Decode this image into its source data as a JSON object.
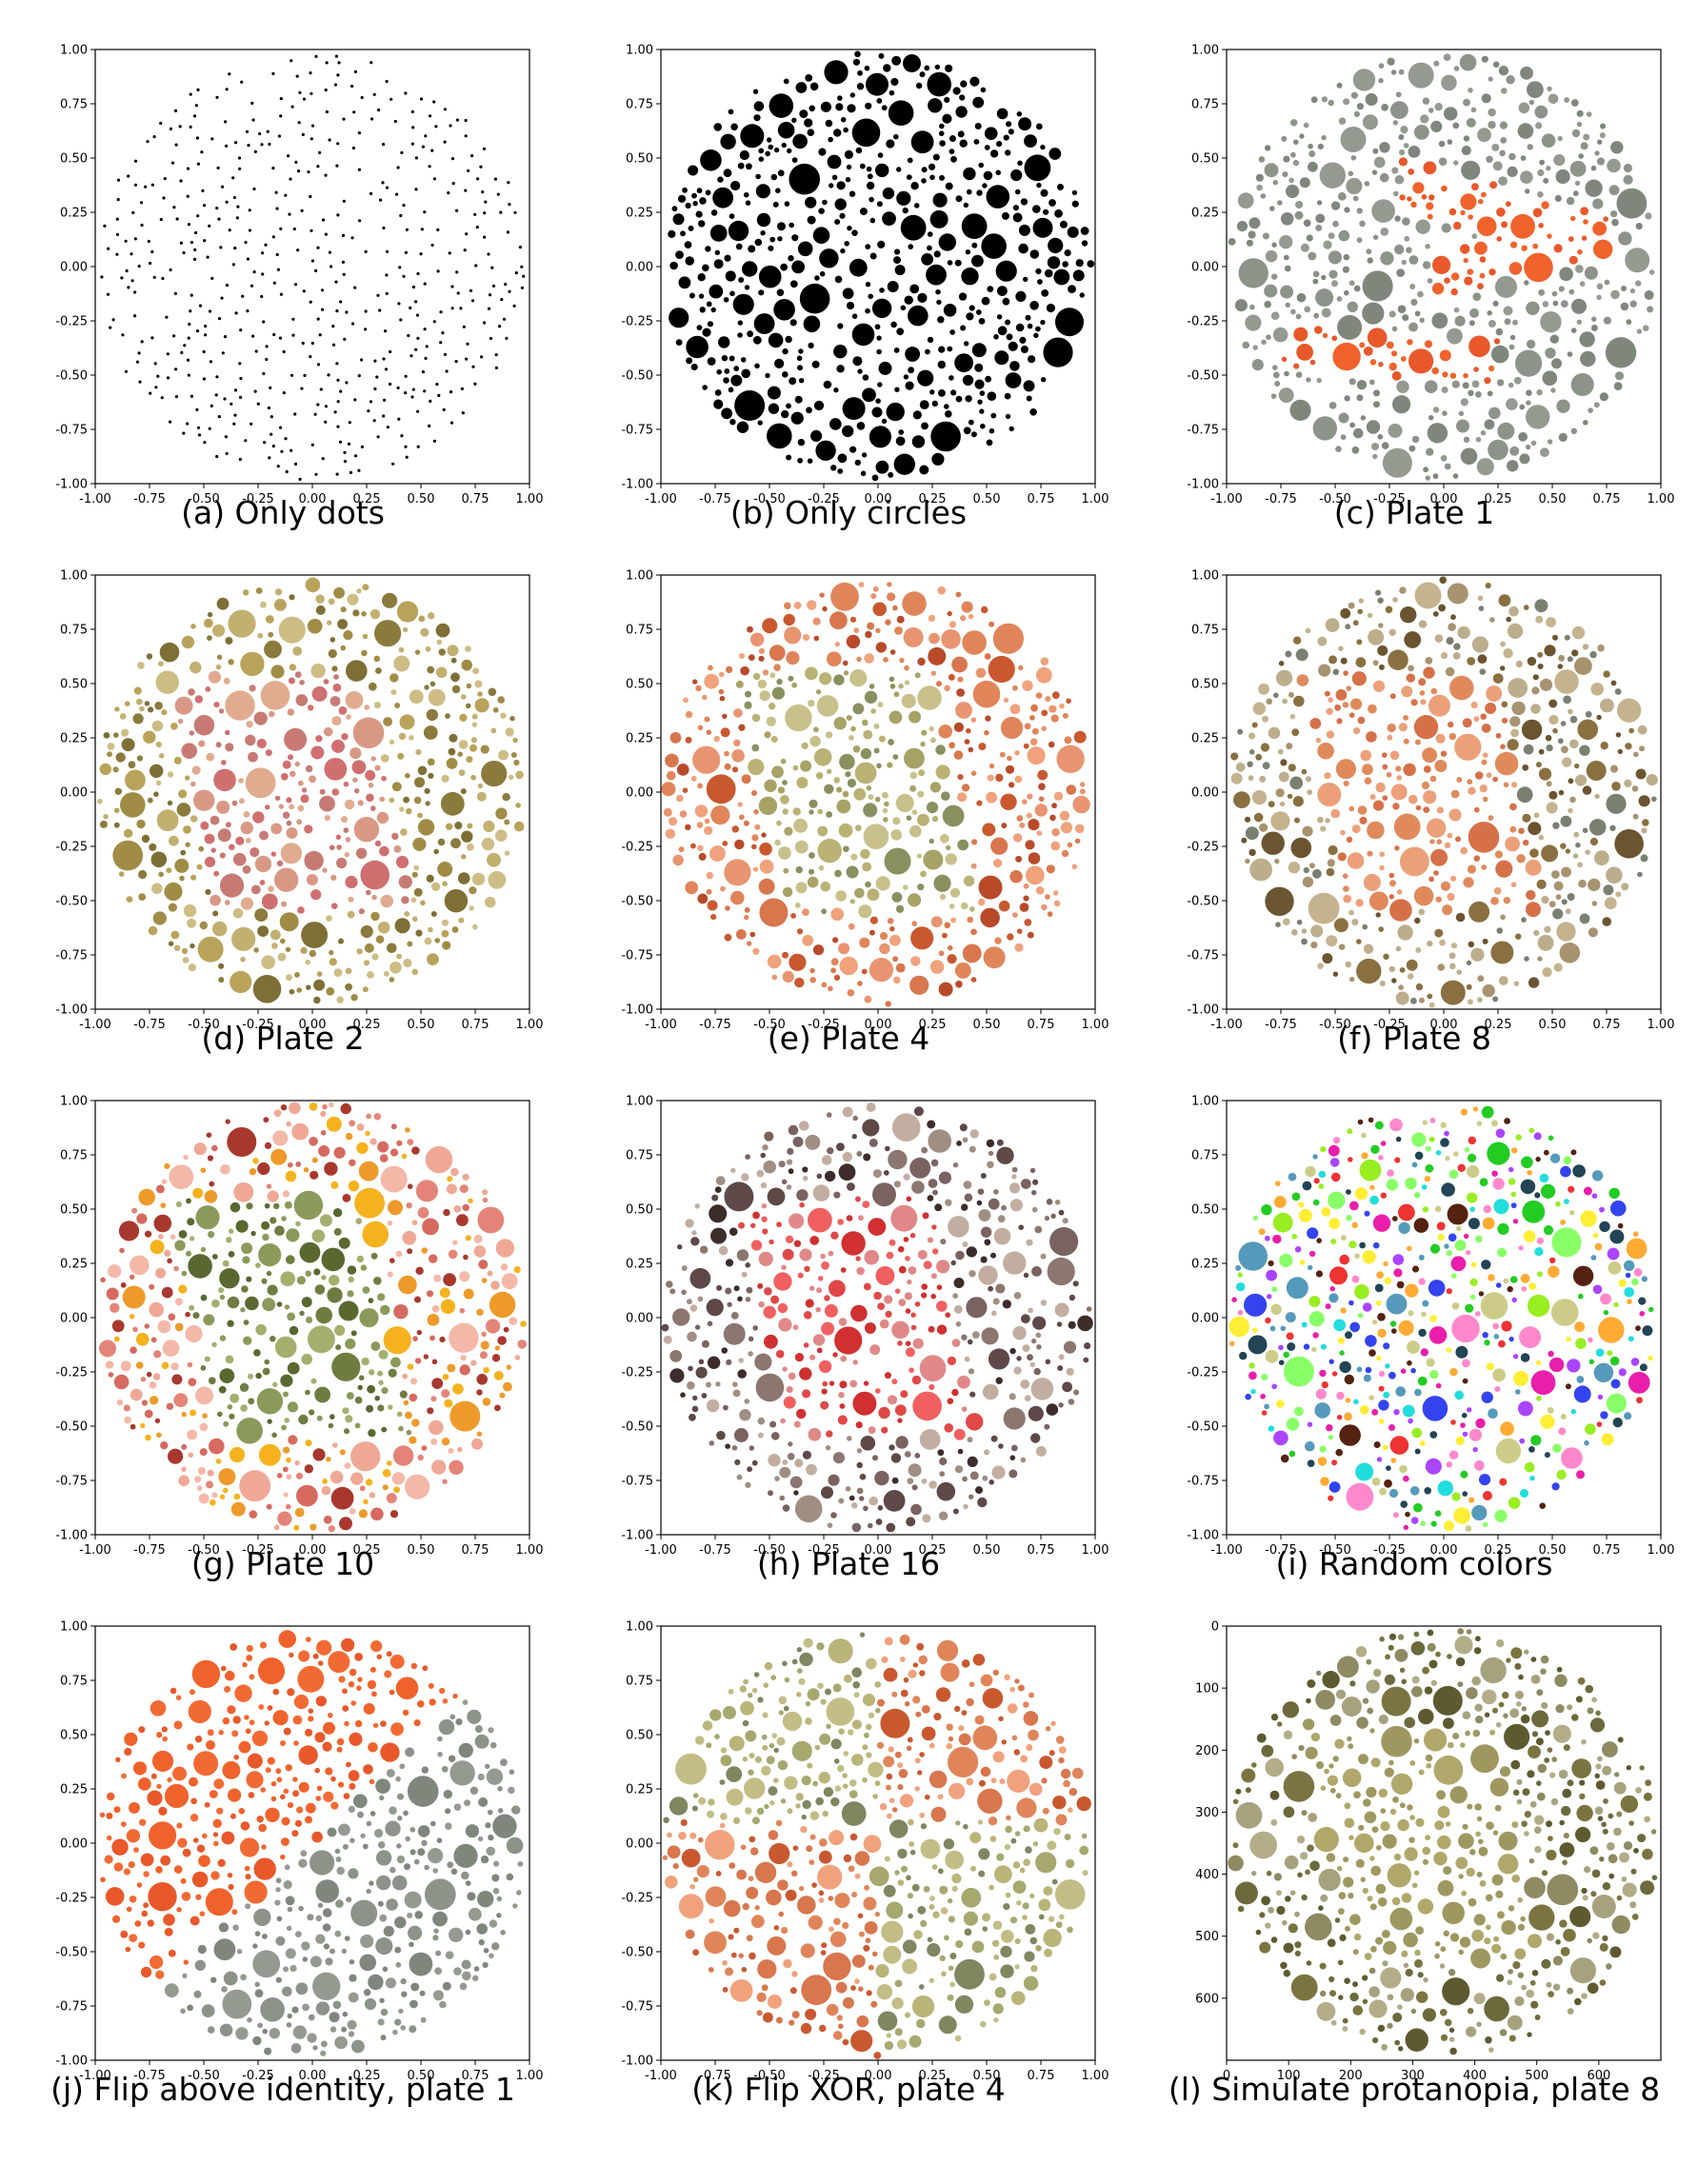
{
  "chart_data": [
    {
      "type": "scatter",
      "caption": "(a) Only dots",
      "style": "dots",
      "palette": [
        "#000000"
      ],
      "figure_colors": [],
      "xlim": [
        -1.0,
        1.0
      ],
      "ylim": [
        -1.0,
        1.0
      ],
      "x_ticks": [
        "-1.00",
        "-0.75",
        "-0.50",
        "-0.25",
        "0.00",
        "0.25",
        "0.50",
        "0.75",
        "1.00"
      ],
      "y_ticks": [
        "1.00",
        "0.75",
        "0.50",
        "0.25",
        "0.00",
        "-0.25",
        "-0.50",
        "-0.75",
        "-1.00"
      ]
    },
    {
      "type": "scatter",
      "caption": "(b) Only circles",
      "style": "filled",
      "palette": [
        "#000000"
      ],
      "figure_colors": [],
      "xlim": [
        -1.0,
        1.0
      ],
      "ylim": [
        -1.0,
        1.0
      ],
      "x_ticks": [
        "-1.00",
        "-0.75",
        "-0.50",
        "-0.25",
        "0.00",
        "0.25",
        "0.50",
        "0.75",
        "1.00"
      ],
      "y_ticks": [
        "1.00",
        "0.75",
        "0.50",
        "0.25",
        "0.00",
        "-0.25",
        "-0.50",
        "-0.75",
        "-1.00"
      ]
    },
    {
      "type": "scatter",
      "caption": "(c) Plate 1",
      "style": "plate",
      "palette": [
        "#8c9389",
        "#7f877c",
        "#949a90"
      ],
      "figure_colors": [
        "#f0622b",
        "#e8582a"
      ],
      "figure": "twelve",
      "xlim": [
        -1.0,
        1.0
      ],
      "ylim": [
        -1.0,
        1.0
      ],
      "x_ticks": [
        "-1.00",
        "-0.75",
        "-0.50",
        "-0.25",
        "0.00",
        "0.25",
        "0.50",
        "0.75",
        "1.00"
      ],
      "y_ticks": [
        "1.00",
        "0.75",
        "0.50",
        "0.25",
        "0.00",
        "-0.25",
        "-0.50",
        "-0.75",
        "-1.00"
      ]
    },
    {
      "type": "scatter",
      "caption": "(d) Plate 2",
      "style": "plate",
      "palette": [
        "#a08c45",
        "#b9a35a",
        "#8a7a3c",
        "#c2b070",
        "#7d6f35",
        "#cdbd85"
      ],
      "figure_colors": [
        "#d99884",
        "#c77a74",
        "#e0ab8f",
        "#d06f6f"
      ],
      "figure": "band",
      "xlim": [
        -1.0,
        1.0
      ],
      "ylim": [
        -1.0,
        1.0
      ],
      "x_ticks": [
        "-1.00",
        "-0.75",
        "-0.50",
        "-0.25",
        "0.00",
        "0.25",
        "0.50",
        "0.75",
        "1.00"
      ],
      "y_ticks": [
        "1.00",
        "0.75",
        "0.50",
        "0.25",
        "0.00",
        "-0.25",
        "-0.50",
        "-0.75",
        "-1.00"
      ]
    },
    {
      "type": "scatter",
      "caption": "(e) Plate 4",
      "style": "plate",
      "palette": [
        "#e0855a",
        "#c9582f",
        "#f0a27c",
        "#d8764d",
        "#e89470",
        "#b84a2a"
      ],
      "figure_colors": [
        "#b9b274",
        "#8a8f5f",
        "#c8c08a",
        "#a7a266"
      ],
      "figure": "band",
      "xlim": [
        -1.0,
        1.0
      ],
      "ylim": [
        -1.0,
        1.0
      ],
      "x_ticks": [
        "-1.00",
        "-0.75",
        "-0.50",
        "-0.25",
        "0.00",
        "0.25",
        "0.50",
        "0.75",
        "1.00"
      ],
      "y_ticks": [
        "1.00",
        "0.75",
        "0.50",
        "0.25",
        "0.00",
        "-0.25",
        "-0.50",
        "-0.75",
        "-1.00"
      ]
    },
    {
      "type": "scatter",
      "caption": "(f) Plate 8",
      "style": "plate",
      "palette": [
        "#8a7040",
        "#bcae8c",
        "#6b5430",
        "#a89370",
        "#7a8070",
        "#c4b38e"
      ],
      "figure_colors": [
        "#e08a5c",
        "#d67048",
        "#eba07a"
      ],
      "figure": "band",
      "xlim": [
        -1.0,
        1.0
      ],
      "ylim": [
        -1.0,
        1.0
      ],
      "x_ticks": [
        "-1.00",
        "-0.75",
        "-0.50",
        "-0.25",
        "0.00",
        "0.25",
        "0.50",
        "0.75",
        "1.00"
      ],
      "y_ticks": [
        "1.00",
        "0.75",
        "0.50",
        "0.25",
        "0.00",
        "-0.25",
        "-0.50",
        "-0.75",
        "-1.00"
      ]
    },
    {
      "type": "scatter",
      "caption": "(g) Plate 10",
      "style": "plate",
      "palette": [
        "#f0a896",
        "#e48478",
        "#a8382e",
        "#f4b8a8",
        "#d66a60",
        "#f5b21e",
        "#ee9a2a"
      ],
      "figure_colors": [
        "#8a9a5a",
        "#6e7c40",
        "#a6ae6e",
        "#58682f"
      ],
      "figure": "band",
      "xlim": [
        -1.0,
        1.0
      ],
      "ylim": [
        -1.0,
        1.0
      ],
      "x_ticks": [
        "-1.00",
        "-0.75",
        "-0.50",
        "-0.25",
        "0.00",
        "0.25",
        "0.50",
        "0.75",
        "1.00"
      ],
      "y_ticks": [
        "1.00",
        "0.75",
        "0.50",
        "0.25",
        "0.00",
        "-0.25",
        "-0.50",
        "-0.75",
        "-1.00"
      ]
    },
    {
      "type": "scatter",
      "caption": "(h) Plate 16",
      "style": "plate",
      "palette": [
        "#5e4848",
        "#3c2c2a",
        "#a08e82",
        "#7a6260",
        "#c2aea0",
        "#8c7670"
      ],
      "figure_colors": [
        "#e04848",
        "#f06060",
        "#e08888",
        "#d03030"
      ],
      "figure": "band",
      "xlim": [
        -1.0,
        1.0
      ],
      "ylim": [
        -1.0,
        1.0
      ],
      "x_ticks": [
        "-1.00",
        "-0.75",
        "-0.50",
        "-0.25",
        "0.00",
        "0.25",
        "0.50",
        "0.75",
        "1.00"
      ],
      "y_ticks": [
        "1.00",
        "0.75",
        "0.50",
        "0.25",
        "0.00",
        "-0.25",
        "-0.50",
        "-0.75",
        "-1.00"
      ]
    },
    {
      "type": "scatter",
      "caption": "(i) Random colors",
      "style": "random",
      "palette": [
        "#e91eaa",
        "#22cc22",
        "#3344ee",
        "#ffee33",
        "#22dddd",
        "#ee3333",
        "#aa44ff",
        "#88ff66",
        "#ff88cc",
        "#224455",
        "#cccc88",
        "#5599bb",
        "#552211",
        "#99ee22",
        "#ffaa33"
      ],
      "figure_colors": [],
      "xlim": [
        -1.0,
        1.0
      ],
      "ylim": [
        -1.0,
        1.0
      ],
      "x_ticks": [
        "-1.00",
        "-0.75",
        "-0.50",
        "-0.25",
        "0.00",
        "0.25",
        "0.50",
        "0.75",
        "1.00"
      ],
      "y_ticks": [
        "1.00",
        "0.75",
        "0.50",
        "0.25",
        "0.00",
        "-0.25",
        "-0.50",
        "-0.75",
        "-1.00"
      ]
    },
    {
      "type": "scatter",
      "caption": "(j) Flip above identity, plate 1",
      "style": "split_diag",
      "palette": [
        "#8c9389",
        "#7f877c",
        "#949a90"
      ],
      "figure_colors": [
        "#f0622b",
        "#e8582a",
        "#f26a33"
      ],
      "xlim": [
        -1.0,
        1.0
      ],
      "ylim": [
        -1.0,
        1.0
      ],
      "x_ticks": [
        "-1.00",
        "-0.75",
        "-0.50",
        "-0.25",
        "0.00",
        "0.25",
        "0.50",
        "0.75",
        "1.00"
      ],
      "y_ticks": [
        "1.00",
        "0.75",
        "0.50",
        "0.25",
        "0.00",
        "-0.25",
        "-0.50",
        "-0.75",
        "-1.00"
      ]
    },
    {
      "type": "scatter",
      "caption": "(k) Flip XOR, plate 4",
      "style": "xor",
      "palette": [
        "#c2bd85",
        "#7f8660",
        "#b9b478",
        "#a6a86e"
      ],
      "figure_colors": [
        "#e0855a",
        "#c9582f",
        "#f0a27c",
        "#d8764d"
      ],
      "xlim": [
        -1.0,
        1.0
      ],
      "ylim": [
        -1.0,
        1.0
      ],
      "x_ticks": [
        "-1.00",
        "-0.75",
        "-0.50",
        "-0.25",
        "0.00",
        "0.25",
        "0.50",
        "0.75",
        "1.00"
      ],
      "y_ticks": [
        "1.00",
        "0.75",
        "0.50",
        "0.25",
        "0.00",
        "-0.25",
        "-0.50",
        "-0.75",
        "-1.00"
      ]
    },
    {
      "type": "scatter",
      "caption": "(l) Simulate protanopia, plate 8",
      "style": "plate",
      "palette": [
        "#7a7440",
        "#a6a27e",
        "#5e5a30",
        "#8e8a62",
        "#b2ad88",
        "#6c6a3c"
      ],
      "figure_colors": [
        "#b0a86a",
        "#9e9860"
      ],
      "figure": "band",
      "xlim": [
        0,
        700
      ],
      "ylim": [
        700,
        0
      ],
      "x_ticks": [
        "0",
        "100",
        "200",
        "300",
        "400",
        "500",
        "600"
      ],
      "y_ticks": [
        "0",
        "100",
        "200",
        "300",
        "400",
        "500",
        "600"
      ]
    }
  ]
}
